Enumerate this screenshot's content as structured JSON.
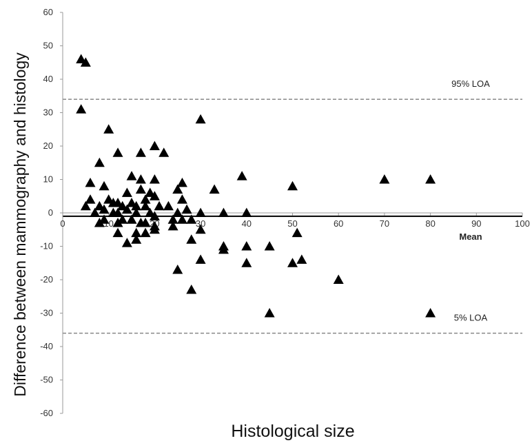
{
  "chart_data": {
    "type": "scatter",
    "title": "",
    "xlabel": "Histological size",
    "ylabel": "Difference between mammography and histology",
    "xlim": [
      0,
      100
    ],
    "ylim": [
      -60,
      60
    ],
    "x_ticks": [
      "0",
      "10",
      "20",
      "30",
      "40",
      "50",
      "60",
      "70",
      "80",
      "90",
      "100"
    ],
    "y_ticks": [
      "60",
      "50",
      "40",
      "30",
      "20",
      "10",
      "0",
      "-10",
      "-20",
      "-30",
      "-40",
      "-50",
      "-60"
    ],
    "grid": false,
    "legend": "none",
    "marker": "triangle",
    "marker_color": "#000000",
    "reference_lines": [
      {
        "label": "95% LOA",
        "y": 34,
        "style": "dashed",
        "color": "#888888"
      },
      {
        "label": "Mean",
        "y": -1,
        "style": "solid",
        "color": "#000000"
      },
      {
        "label": "5% LOA",
        "y": -36,
        "style": "dashed",
        "color": "#888888"
      }
    ],
    "points": [
      {
        "x": 4,
        "y": 46
      },
      {
        "x": 5,
        "y": 45
      },
      {
        "x": 4,
        "y": 31
      },
      {
        "x": 10,
        "y": 25
      },
      {
        "x": 8,
        "y": 15
      },
      {
        "x": 12,
        "y": 18
      },
      {
        "x": 17,
        "y": 18
      },
      {
        "x": 20,
        "y": 20
      },
      {
        "x": 22,
        "y": 18
      },
      {
        "x": 30,
        "y": 28
      },
      {
        "x": 6,
        "y": 9
      },
      {
        "x": 9,
        "y": 8
      },
      {
        "x": 15,
        "y": 11
      },
      {
        "x": 17,
        "y": 10
      },
      {
        "x": 20,
        "y": 10
      },
      {
        "x": 26,
        "y": 9
      },
      {
        "x": 25,
        "y": 7
      },
      {
        "x": 33,
        "y": 7
      },
      {
        "x": 39,
        "y": 11
      },
      {
        "x": 50,
        "y": 8
      },
      {
        "x": 70,
        "y": 10
      },
      {
        "x": 80,
        "y": 10
      },
      {
        "x": 17,
        "y": 7
      },
      {
        "x": 19,
        "y": 6
      },
      {
        "x": 20,
        "y": 5
      },
      {
        "x": 14,
        "y": 6
      },
      {
        "x": 6,
        "y": 4
      },
      {
        "x": 5,
        "y": 2
      },
      {
        "x": 8,
        "y": 2
      },
      {
        "x": 10,
        "y": 4
      },
      {
        "x": 11,
        "y": 3
      },
      {
        "x": 12,
        "y": 3
      },
      {
        "x": 13,
        "y": 2
      },
      {
        "x": 15,
        "y": 3
      },
      {
        "x": 16,
        "y": 2
      },
      {
        "x": 18,
        "y": 4
      },
      {
        "x": 18,
        "y": 2
      },
      {
        "x": 21,
        "y": 2
      },
      {
        "x": 23,
        "y": 2
      },
      {
        "x": 26,
        "y": 4
      },
      {
        "x": 27,
        "y": 1
      },
      {
        "x": 7,
        "y": 0
      },
      {
        "x": 9,
        "y": 1
      },
      {
        "x": 11,
        "y": 0
      },
      {
        "x": 12,
        "y": 0
      },
      {
        "x": 14,
        "y": 1
      },
      {
        "x": 16,
        "y": 0
      },
      {
        "x": 19,
        "y": 0
      },
      {
        "x": 20,
        "y": -1
      },
      {
        "x": 25,
        "y": 0
      },
      {
        "x": 30,
        "y": 0
      },
      {
        "x": 35,
        "y": 0
      },
      {
        "x": 40,
        "y": 0
      },
      {
        "x": 8,
        "y": -3
      },
      {
        "x": 9,
        "y": -2
      },
      {
        "x": 12,
        "y": -3
      },
      {
        "x": 13,
        "y": -2
      },
      {
        "x": 15,
        "y": -2
      },
      {
        "x": 17,
        "y": -3
      },
      {
        "x": 18,
        "y": -3
      },
      {
        "x": 20,
        "y": -4
      },
      {
        "x": 24,
        "y": -4
      },
      {
        "x": 24,
        "y": -2
      },
      {
        "x": 26,
        "y": -2
      },
      {
        "x": 28,
        "y": -2
      },
      {
        "x": 12,
        "y": -6
      },
      {
        "x": 14,
        "y": -9
      },
      {
        "x": 16,
        "y": -8
      },
      {
        "x": 16,
        "y": -6
      },
      {
        "x": 18,
        "y": -6
      },
      {
        "x": 20,
        "y": -5
      },
      {
        "x": 30,
        "y": -5
      },
      {
        "x": 28,
        "y": -8
      },
      {
        "x": 35,
        "y": -10
      },
      {
        "x": 35,
        "y": -11
      },
      {
        "x": 40,
        "y": -10
      },
      {
        "x": 45,
        "y": -10
      },
      {
        "x": 51,
        "y": -6
      },
      {
        "x": 30,
        "y": -14
      },
      {
        "x": 40,
        "y": -15
      },
      {
        "x": 50,
        "y": -15
      },
      {
        "x": 52,
        "y": -14
      },
      {
        "x": 25,
        "y": -17
      },
      {
        "x": 60,
        "y": -20
      },
      {
        "x": 28,
        "y": -23
      },
      {
        "x": 45,
        "y": -30
      },
      {
        "x": 80,
        "y": -30
      }
    ]
  }
}
